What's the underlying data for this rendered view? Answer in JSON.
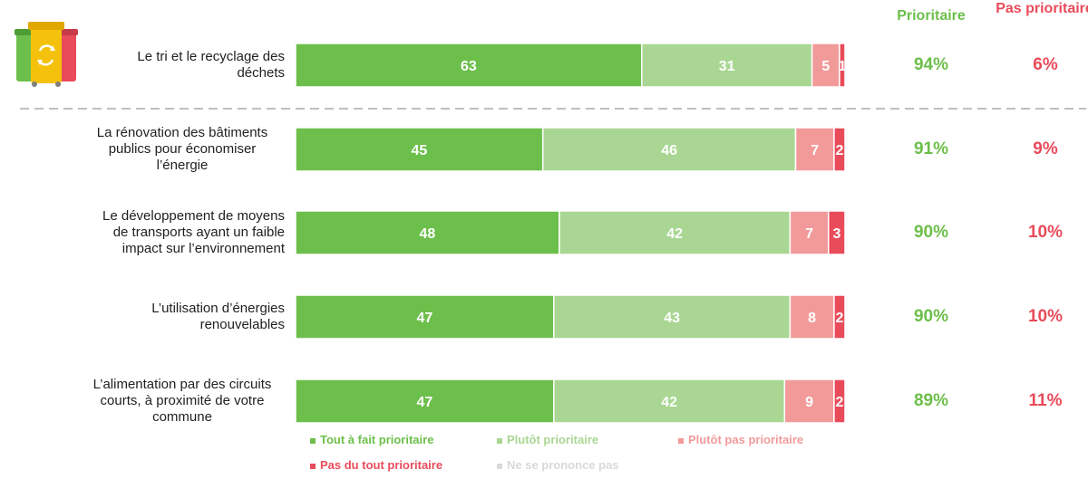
{
  "chart_data": {
    "type": "bar",
    "orientation": "horizontal",
    "stacked": true,
    "categories": [
      "Le tri et le recyclage des déchets",
      "La rénovation des bâtiments publics pour économiser l’énergie",
      "Le développement de moyens de transports ayant un faible impact sur l’environnement",
      "L’utilisation d’énergies renouvelables",
      "L’alimentation par des circuits courts, à proximité de votre commune"
    ],
    "series": [
      {
        "name": "Tout à fait prioritaire",
        "color": "#6dbf4b",
        "values": [
          63,
          45,
          48,
          47,
          47
        ]
      },
      {
        "name": "Plutôt prioritaire",
        "color": "#a9d793",
        "values": [
          31,
          46,
          42,
          43,
          42
        ]
      },
      {
        "name": "Plutôt pas prioritaire",
        "color": "#f29a9a",
        "values": [
          5,
          7,
          7,
          8,
          9
        ]
      },
      {
        "name": "Pas du tout prioritaire",
        "color": "#e94b5a",
        "values": [
          1,
          2,
          3,
          2,
          2
        ]
      },
      {
        "name": "Ne se prononce pas",
        "color": "#d9d9d9",
        "values": [
          0,
          0,
          0,
          0,
          0
        ]
      }
    ],
    "xlim": [
      0,
      100
    ],
    "summary": {
      "prioritaire_header": "Prioritaire",
      "pas_prioritaire_header": "Pas prioritaire",
      "prioritaire": [
        "94%",
        "91%",
        "90%",
        "90%",
        "89%"
      ],
      "pas_prioritaire": [
        "6%",
        "9%",
        "10%",
        "10%",
        "11%"
      ],
      "prioritaire_color": "#6dbf4b",
      "pas_prioritaire_color": "#e94b5a"
    },
    "legend_position": "bottom",
    "grid": false,
    "icon": "recycling-bins-icon"
  }
}
